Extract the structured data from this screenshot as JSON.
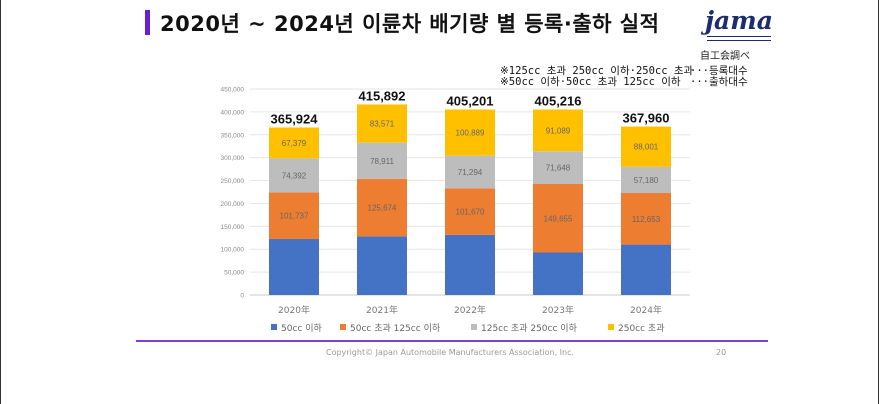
{
  "title": "2020년 ~ 2024년 이륜차 배기량 별 등록·출하 실적",
  "logo_text": "jama",
  "source": "自工会調べ",
  "notes": [
    {
      "text": "※125cc 초과 250cc 이하·250cc 초과",
      "suffix": "···등록대수"
    },
    {
      "text": "※50cc 이하·50cc 초과 125cc 이하",
      "suffix": "···출하대수"
    }
  ],
  "colors": {
    "accent": "#6a1fd0",
    "s1": "#4472c4",
    "s2": "#ed7d31",
    "s3": "#bdbdbd",
    "s4": "#ffc000"
  },
  "chart_data": {
    "type": "bar",
    "stacked": true,
    "categories": [
      "2020年",
      "2021年",
      "2022年",
      "2023年",
      "2024年"
    ],
    "ylim": [
      0,
      450000
    ],
    "yticks": [
      "0",
      "50,000",
      "100,000",
      "150,000",
      "200,000",
      "250,000",
      "300,000",
      "350,000",
      "400,000",
      "450,000"
    ],
    "grid": true,
    "legend_position": "bottom",
    "series": [
      {
        "name": "50cc 이하",
        "values": [
          122416,
          128076,
          131358,
          92824,
          110126
        ],
        "labels": [
          "",
          "",
          "",
          "",
          ""
        ]
      },
      {
        "name": "50cc 초과 125cc 이하",
        "values": [
          101737,
          125674,
          101670,
          149655,
          112653
        ],
        "labels": [
          "101,737",
          "125,674",
          "101,670",
          "149,655",
          "112,653"
        ]
      },
      {
        "name": "125cc 초과 250cc 이하",
        "values": [
          74392,
          78911,
          71294,
          71648,
          57180
        ],
        "labels": [
          "74,392",
          "78,911",
          "71,294",
          "71,648",
          "57,180"
        ]
      },
      {
        "name": "250cc 초과",
        "values": [
          67379,
          83571,
          100889,
          91089,
          88001
        ],
        "labels": [
          "67,379",
          "83,571",
          "100,889",
          "91,089",
          "88,001"
        ]
      }
    ],
    "totals": [
      "365,924",
      "415,892",
      "405,201",
      "405,216",
      "367,960"
    ]
  },
  "footer": {
    "copyright": "Copyright© Japan Automobile Manufacturers Association, Inc.",
    "page": "20"
  }
}
